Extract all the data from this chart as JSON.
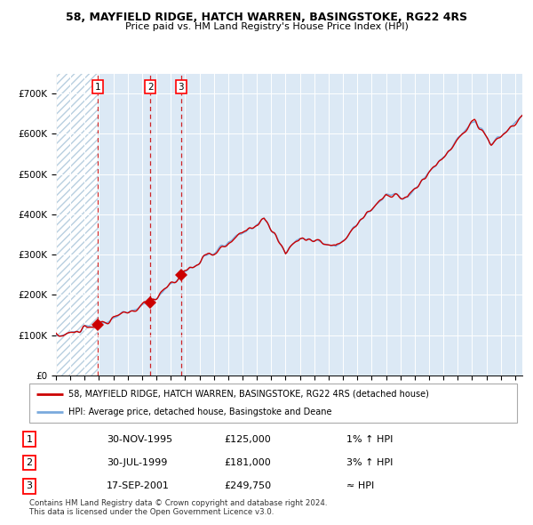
{
  "title1": "58, MAYFIELD RIDGE, HATCH WARREN, BASINGSTOKE, RG22 4RS",
  "title2": "Price paid vs. HM Land Registry's House Price Index (HPI)",
  "ylim": [
    0,
    750000
  ],
  "yticks": [
    0,
    100000,
    200000,
    300000,
    400000,
    500000,
    600000,
    700000
  ],
  "ytick_labels": [
    "£0",
    "£100K",
    "£200K",
    "£300K",
    "£400K",
    "£500K",
    "£600K",
    "£700K"
  ],
  "sales": [
    {
      "num": 1,
      "date_label": "30-NOV-1995",
      "date_x": 1995.92,
      "price": 125000,
      "hpi_rel": "1% ↑ HPI"
    },
    {
      "num": 2,
      "date_label": "30-JUL-1999",
      "date_x": 1999.58,
      "price": 181000,
      "hpi_rel": "3% ↑ HPI"
    },
    {
      "num": 3,
      "date_label": "17-SEP-2001",
      "date_x": 2001.71,
      "price": 249750,
      "hpi_rel": "≈ HPI"
    }
  ],
  "legend_line1": "58, MAYFIELD RIDGE, HATCH WARREN, BASINGSTOKE, RG22 4RS (detached house)",
  "legend_line2": "HPI: Average price, detached house, Basingstoke and Deane",
  "footnote1": "Contains HM Land Registry data © Crown copyright and database right 2024.",
  "footnote2": "This data is licensed under the Open Government Licence v3.0.",
  "line_color": "#cc0000",
  "hpi_color": "#7aaadd",
  "bg_color": "#dce9f5",
  "hatch_edgecolor": "#b8cfe0",
  "grid_color": "#ffffff",
  "marker_color": "#cc0000",
  "dashed_line_color": "#cc0000",
  "xlim_left": 1993.0,
  "xlim_right": 2025.5
}
